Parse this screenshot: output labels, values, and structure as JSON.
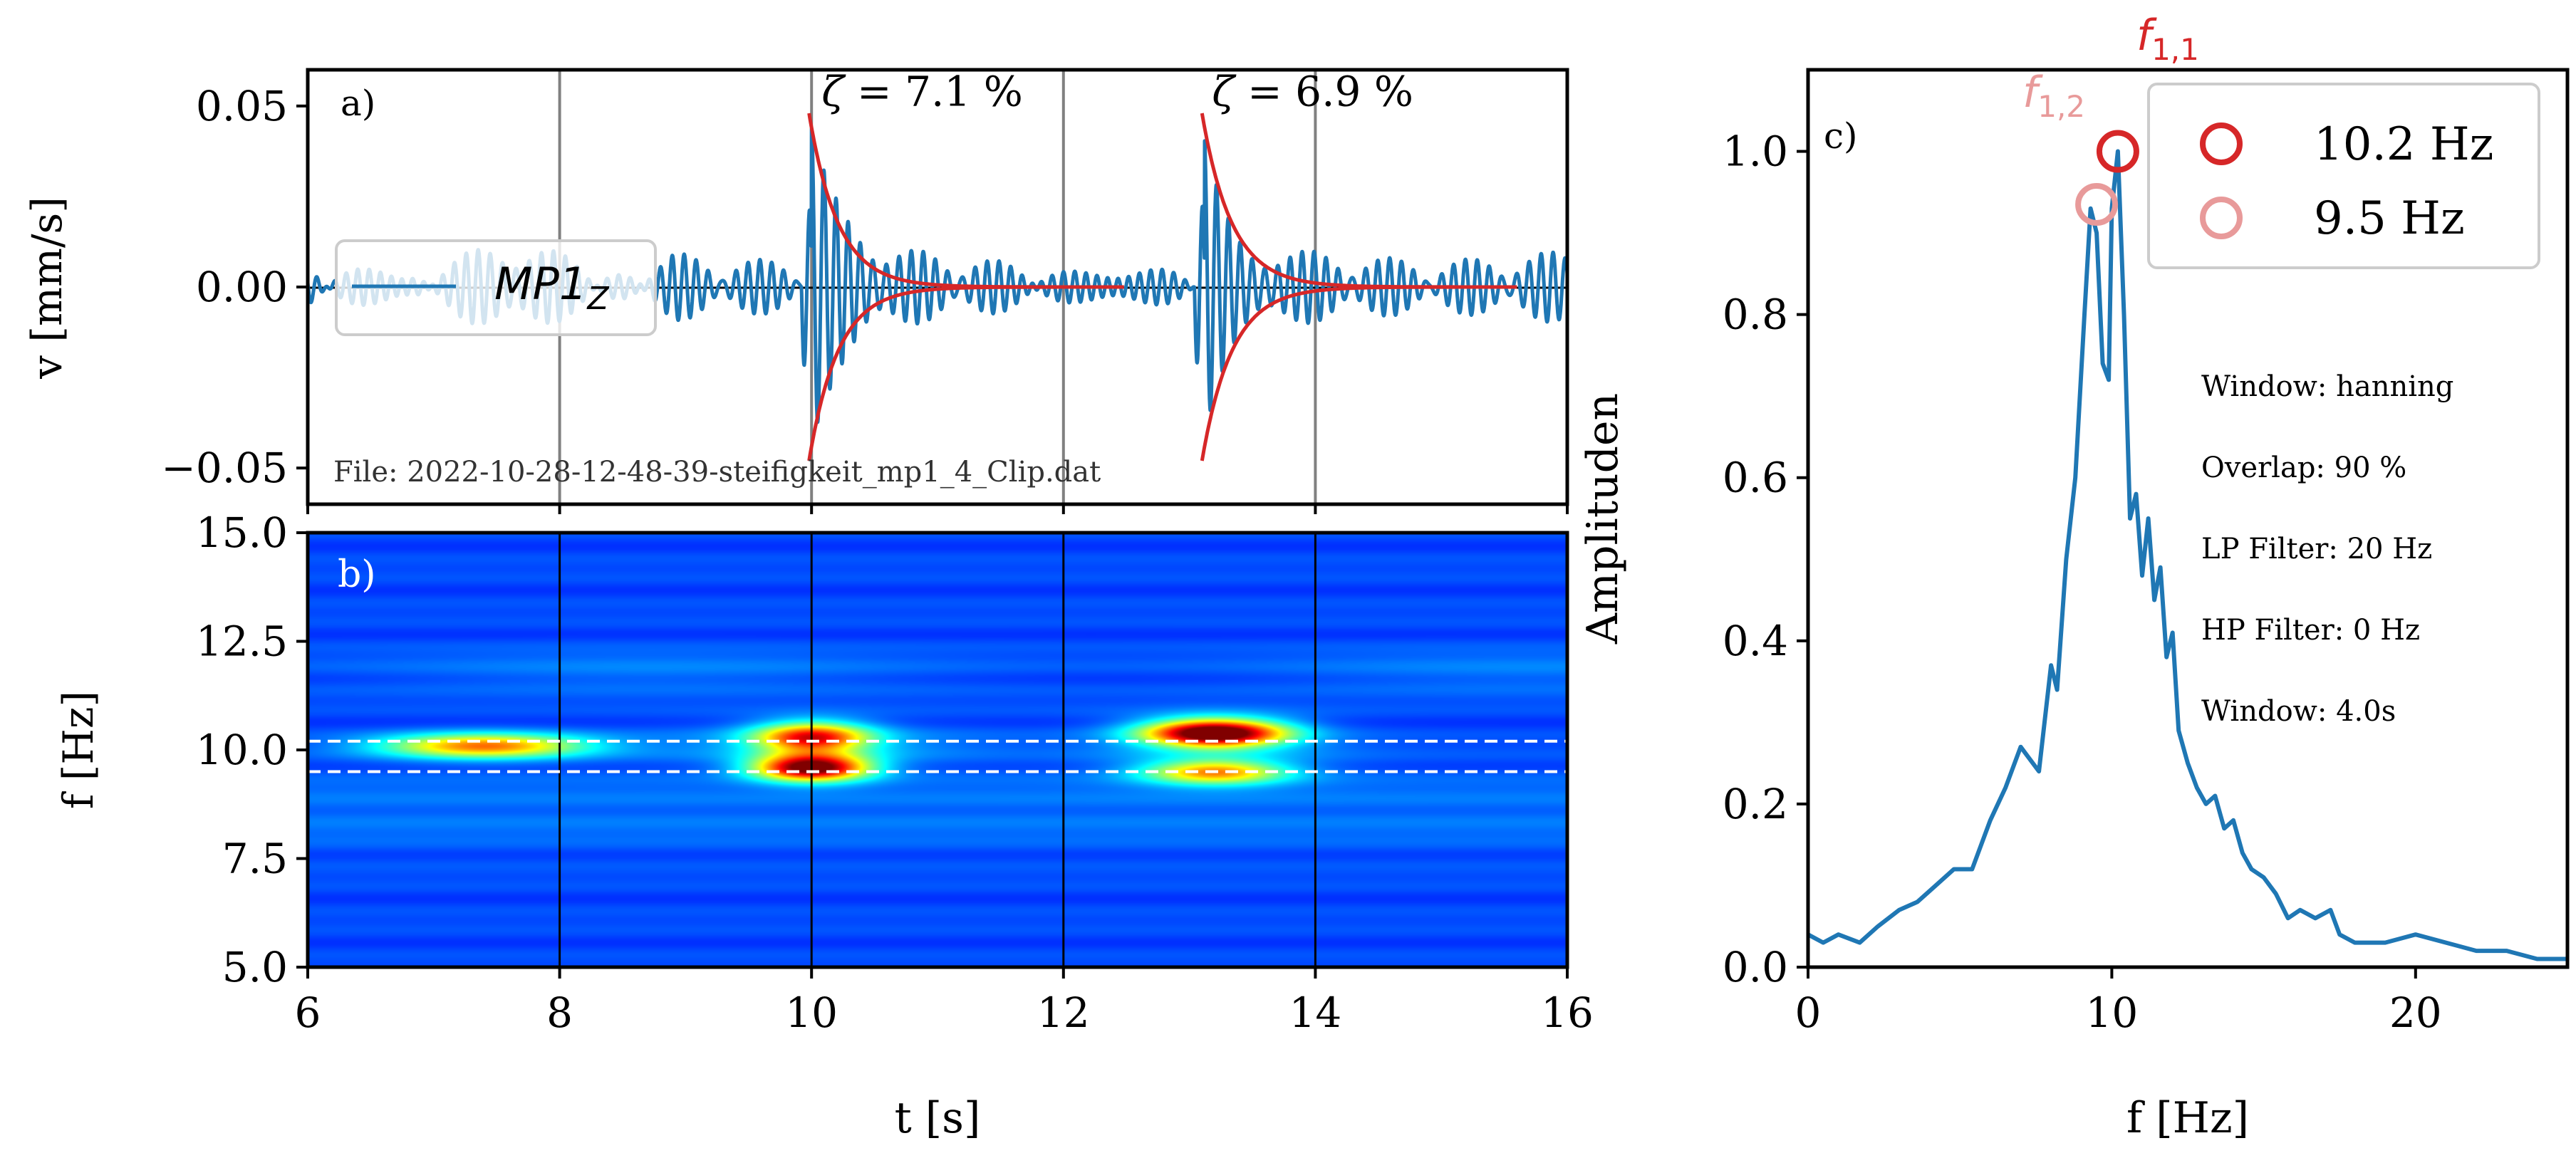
{
  "chart_data": [
    {
      "panel": "a)",
      "type": "line",
      "ylabel": "v [mm/s]",
      "xlabel": "",
      "xlim": [
        6,
        16
      ],
      "ylim": [
        -0.06,
        0.06
      ],
      "yticks": [
        -0.05,
        0.0,
        0.05
      ],
      "ytick_labels": [
        "−0.05",
        "0.00",
        "0.05"
      ],
      "xticks": [
        6,
        8,
        10,
        12,
        14,
        16
      ],
      "grid_x": [
        8,
        10,
        12,
        14
      ],
      "legend_prefix": "MP1",
      "legend_sub": "Z",
      "legend": "MP1_Z",
      "file_label": "File: 2022-10-28-12-48-39-steifigkeit_mp1_4_Clip.dat",
      "series": [
        {
          "name": "MP1_Z",
          "color": "#1f77b4",
          "background_amplitude": 0.008,
          "impulses": [
            {
              "t0": 10.0,
              "peak": 0.04,
              "damping_ratio_pct": 7.1,
              "freq_hz": 10.2
            },
            {
              "t0": 13.12,
              "peak": 0.039,
              "damping_ratio_pct": 6.9,
              "freq_hz": 10.2
            }
          ]
        }
      ],
      "envelope_color": "#d62728",
      "annotations": [
        {
          "symbol": "ζ",
          "text": " = 7.1 %",
          "x": 10.0,
          "y": 0.052
        },
        {
          "symbol": "ζ",
          "text": " = 6.9 %",
          "x": 13.1,
          "y": 0.052
        }
      ]
    },
    {
      "panel": "b)",
      "type": "heatmap",
      "xlabel": "t [s]",
      "ylabel": "f [Hz]",
      "xlim": [
        6,
        16
      ],
      "ylim": [
        5,
        15
      ],
      "yticks": [
        5.0,
        7.5,
        10.0,
        12.5,
        15.0
      ],
      "ytick_labels": [
        "5.0",
        "7.5",
        "10.0",
        "12.5",
        "15.0"
      ],
      "xticks": [
        6,
        8,
        10,
        12,
        14,
        16
      ],
      "xtick_labels": [
        "6",
        "8",
        "10",
        "12",
        "14",
        "16"
      ],
      "grid_x": [
        8,
        10,
        12,
        14
      ],
      "dashed_lines_hz": [
        10.2,
        9.5
      ],
      "colormap": "jet",
      "hotspots": [
        {
          "t": 7.4,
          "f": 10.1,
          "dt": 0.8,
          "df": 0.28,
          "amp": 0.62
        },
        {
          "t": 10.0,
          "f": 9.6,
          "dt": 0.45,
          "df": 0.3,
          "amp": 0.95
        },
        {
          "t": 10.0,
          "f": 10.3,
          "dt": 0.45,
          "df": 0.35,
          "amp": 0.7
        },
        {
          "t": 13.2,
          "f": 10.4,
          "dt": 0.55,
          "df": 0.32,
          "amp": 1.0
        },
        {
          "t": 13.2,
          "f": 9.5,
          "dt": 0.55,
          "df": 0.28,
          "amp": 0.55
        }
      ]
    },
    {
      "panel": "c)",
      "type": "line",
      "xlabel": "f [Hz]",
      "ylabel": "Amplituden",
      "xlim": [
        0,
        25
      ],
      "ylim": [
        0,
        1.1
      ],
      "xticks": [
        0,
        10,
        20
      ],
      "xtick_labels": [
        "0",
        "10",
        "20"
      ],
      "yticks": [
        0.0,
        0.2,
        0.4,
        0.6,
        0.8,
        1.0
      ],
      "ytick_labels": [
        "0.0",
        "0.2",
        "0.4",
        "0.6",
        "0.8",
        "1.0"
      ],
      "series": [
        {
          "name": "spectrum",
          "color": "#1f77b4",
          "x": [
            0,
            0.5,
            1,
            1.7,
            2.3,
            3,
            3.6,
            4.2,
            4.8,
            5.4,
            6,
            6.5,
            7,
            7.2,
            7.6,
            8,
            8.2,
            8.5,
            8.8,
            9.1,
            9.3,
            9.5,
            9.7,
            9.9,
            10.0,
            10.2,
            10.4,
            10.6,
            10.8,
            11.0,
            11.2,
            11.4,
            11.6,
            11.8,
            12.0,
            12.2,
            12.5,
            12.8,
            13.1,
            13.4,
            13.7,
            14.0,
            14.3,
            14.6,
            15.0,
            15.4,
            15.8,
            16.2,
            16.7,
            17.2,
            17.5,
            18,
            19,
            20,
            21,
            22,
            23,
            24,
            25
          ],
          "y": [
            0.04,
            0.03,
            0.04,
            0.03,
            0.05,
            0.07,
            0.08,
            0.1,
            0.12,
            0.12,
            0.18,
            0.22,
            0.27,
            0.26,
            0.24,
            0.37,
            0.34,
            0.5,
            0.6,
            0.8,
            0.93,
            0.9,
            0.74,
            0.72,
            0.93,
            1.0,
            0.8,
            0.55,
            0.58,
            0.48,
            0.55,
            0.45,
            0.49,
            0.38,
            0.41,
            0.29,
            0.25,
            0.22,
            0.2,
            0.21,
            0.17,
            0.18,
            0.14,
            0.12,
            0.11,
            0.09,
            0.06,
            0.07,
            0.06,
            0.07,
            0.04,
            0.03,
            0.03,
            0.04,
            0.03,
            0.02,
            0.02,
            0.01,
            0.01
          ]
        }
      ],
      "peaks": [
        {
          "label_base": "f",
          "label_sub": "1,1",
          "freq_hz": 10.2,
          "amp": 1.0,
          "legend": "10.2 Hz",
          "color": "#d62728"
        },
        {
          "label_base": "f",
          "label_sub": "1,2",
          "freq_hz": 9.5,
          "amp": 0.935,
          "legend": "9.5 Hz",
          "color": "#e89a9a"
        }
      ],
      "info": [
        "Window: hanning",
        "Overlap: 90 %",
        "LP Filter: 20 Hz",
        "HP Filter: 0 Hz",
        "Window: 4.0s"
      ]
    }
  ]
}
